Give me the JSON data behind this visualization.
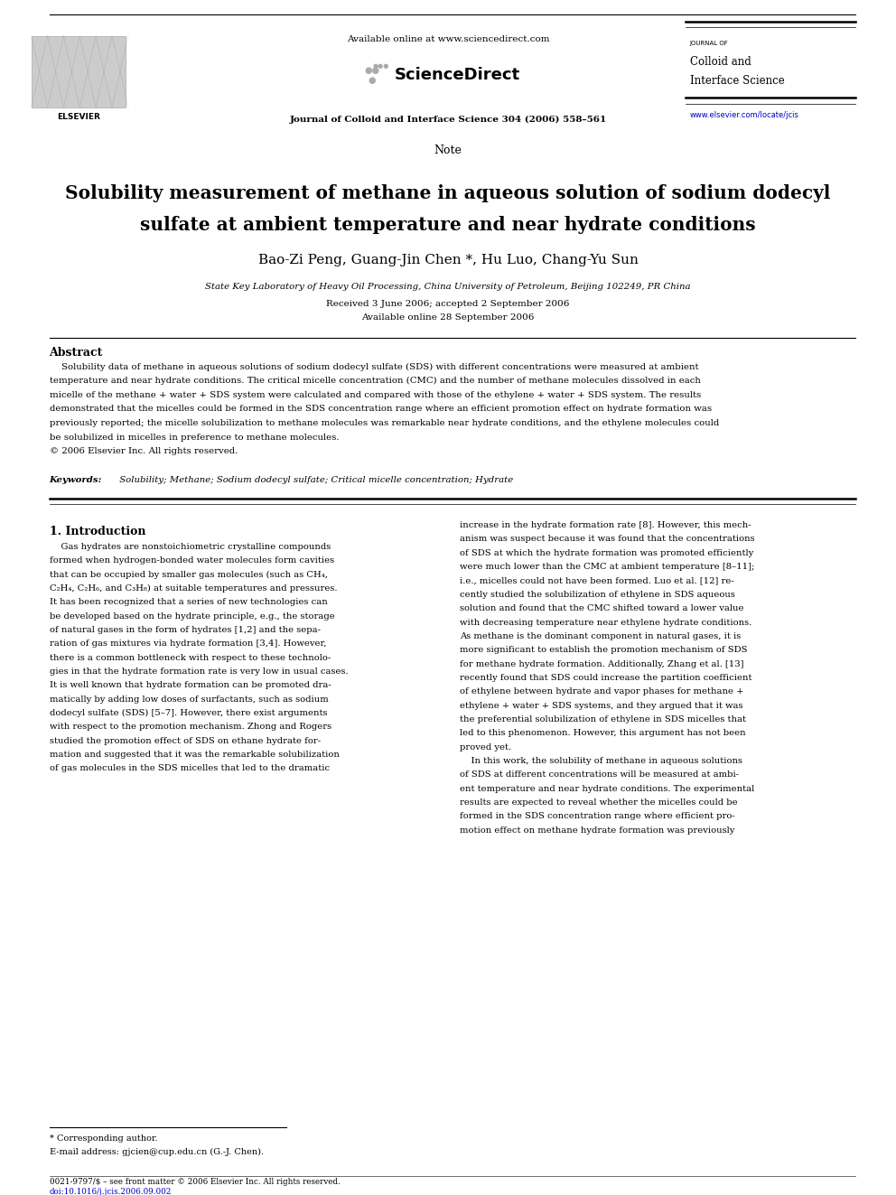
{
  "bg_color": "#ffffff",
  "page_width": 9.92,
  "page_height": 13.23,
  "header_available_text": "Available online at www.sciencedirect.com",
  "header_journal_line": "Journal of Colloid and Interface Science 304 (2006) 558–561",
  "journal_name_line1": "JOURNAL OF",
  "journal_name_line2": "Colloid and",
  "journal_name_line3": "Interface Science",
  "journal_url": "www.elsevier.com/locate/jcis",
  "elsevier_text": "ELSEVIER",
  "sciencedirect_text": "ScienceDirect",
  "note_text": "Note",
  "paper_title_line1": "Solubility measurement of methane in aqueous solution of sodium dodecyl",
  "paper_title_line2": "sulfate at ambient temperature and near hydrate conditions",
  "author_part1": "Bao-Zi Peng, Guang-Jin Chen",
  "author_asterisk": "*",
  "author_part2": ", Hu Luo, Chang-Yu Sun",
  "affiliation": "State Key Laboratory of Heavy Oil Processing, China University of Petroleum, Beijing 102249, PR China",
  "received": "Received 3 June 2006; accepted 2 September 2006",
  "available_online": "Available online 28 September 2006",
  "abstract_title": "Abstract",
  "abstract_lines": [
    "    Solubility data of methane in aqueous solutions of sodium dodecyl sulfate (SDS) with different concentrations were measured at ambient",
    "temperature and near hydrate conditions. The critical micelle concentration (CMC) and the number of methane molecules dissolved in each",
    "micelle of the methane + water + SDS system were calculated and compared with those of the ethylene + water + SDS system. The results",
    "demonstrated that the micelles could be formed in the SDS concentration range where an efficient promotion effect on hydrate formation was",
    "previously reported; the micelle solubilization to methane molecules was remarkable near hydrate conditions, and the ethylene molecules could",
    "be solubilized in micelles in preference to methane molecules.",
    "© 2006 Elsevier Inc. All rights reserved."
  ],
  "keywords_label": "Keywords:",
  "keywords_text": " Solubility; Methane; Sodium dodecyl sulfate; Critical micelle concentration; Hydrate",
  "section1_title": "1. Introduction",
  "intro_left_lines": [
    "    Gas hydrates are nonstoichiometric crystalline compounds",
    "formed when hydrogen-bonded water molecules form cavities",
    "that can be occupied by smaller gas molecules (such as CH₄,",
    "C₂H₄, C₂H₆, and C₃H₈) at suitable temperatures and pressures.",
    "It has been recognized that a series of new technologies can",
    "be developed based on the hydrate principle, e.g., the storage",
    "of natural gases in the form of hydrates [1,2] and the sepa-",
    "ration of gas mixtures via hydrate formation [3,4]. However,",
    "there is a common bottleneck with respect to these technolo-",
    "gies in that the hydrate formation rate is very low in usual cases.",
    "It is well known that hydrate formation can be promoted dra-",
    "matically by adding low doses of surfactants, such as sodium",
    "dodecyl sulfate (SDS) [5–7]. However, there exist arguments",
    "with respect to the promotion mechanism. Zhong and Rogers",
    "studied the promotion effect of SDS on ethane hydrate for-",
    "mation and suggested that it was the remarkable solubilization",
    "of gas molecules in the SDS micelles that led to the dramatic"
  ],
  "intro_right_lines": [
    "increase in the hydrate formation rate [8]. However, this mech-",
    "anism was suspect because it was found that the concentrations",
    "of SDS at which the hydrate formation was promoted efficiently",
    "were much lower than the CMC at ambient temperature [8–11];",
    "i.e., micelles could not have been formed. Luo et al. [12] re-",
    "cently studied the solubilization of ethylene in SDS aqueous",
    "solution and found that the CMC shifted toward a lower value",
    "with decreasing temperature near ethylene hydrate conditions.",
    "As methane is the dominant component in natural gases, it is",
    "more significant to establish the promotion mechanism of SDS",
    "for methane hydrate formation. Additionally, Zhang et al. [13]",
    "recently found that SDS could increase the partition coefficient",
    "of ethylene between hydrate and vapor phases for methane +",
    "ethylene + water + SDS systems, and they argued that it was",
    "the preferential solubilization of ethylene in SDS micelles that",
    "led to this phenomenon. However, this argument has not been",
    "proved yet.",
    "    In this work, the solubility of methane in aqueous solutions",
    "of SDS at different concentrations will be measured at ambi-",
    "ent temperature and near hydrate conditions. The experimental",
    "results are expected to reveal whether the micelles could be",
    "formed in the SDS concentration range where efficient pro-",
    "motion effect on methane hydrate formation was previously"
  ],
  "footer_line1": "0021-9797/$ – see front matter © 2006 Elsevier Inc. All rights reserved.",
  "footer_line2": "doi:10.1016/j.jcis.2006.09.002",
  "corresponding_note": "* Corresponding author.",
  "email_note": "E-mail address: gjcien@cup.edu.cn (G.-J. Chen).",
  "text_color": "#000000",
  "link_color": "#0000cc"
}
